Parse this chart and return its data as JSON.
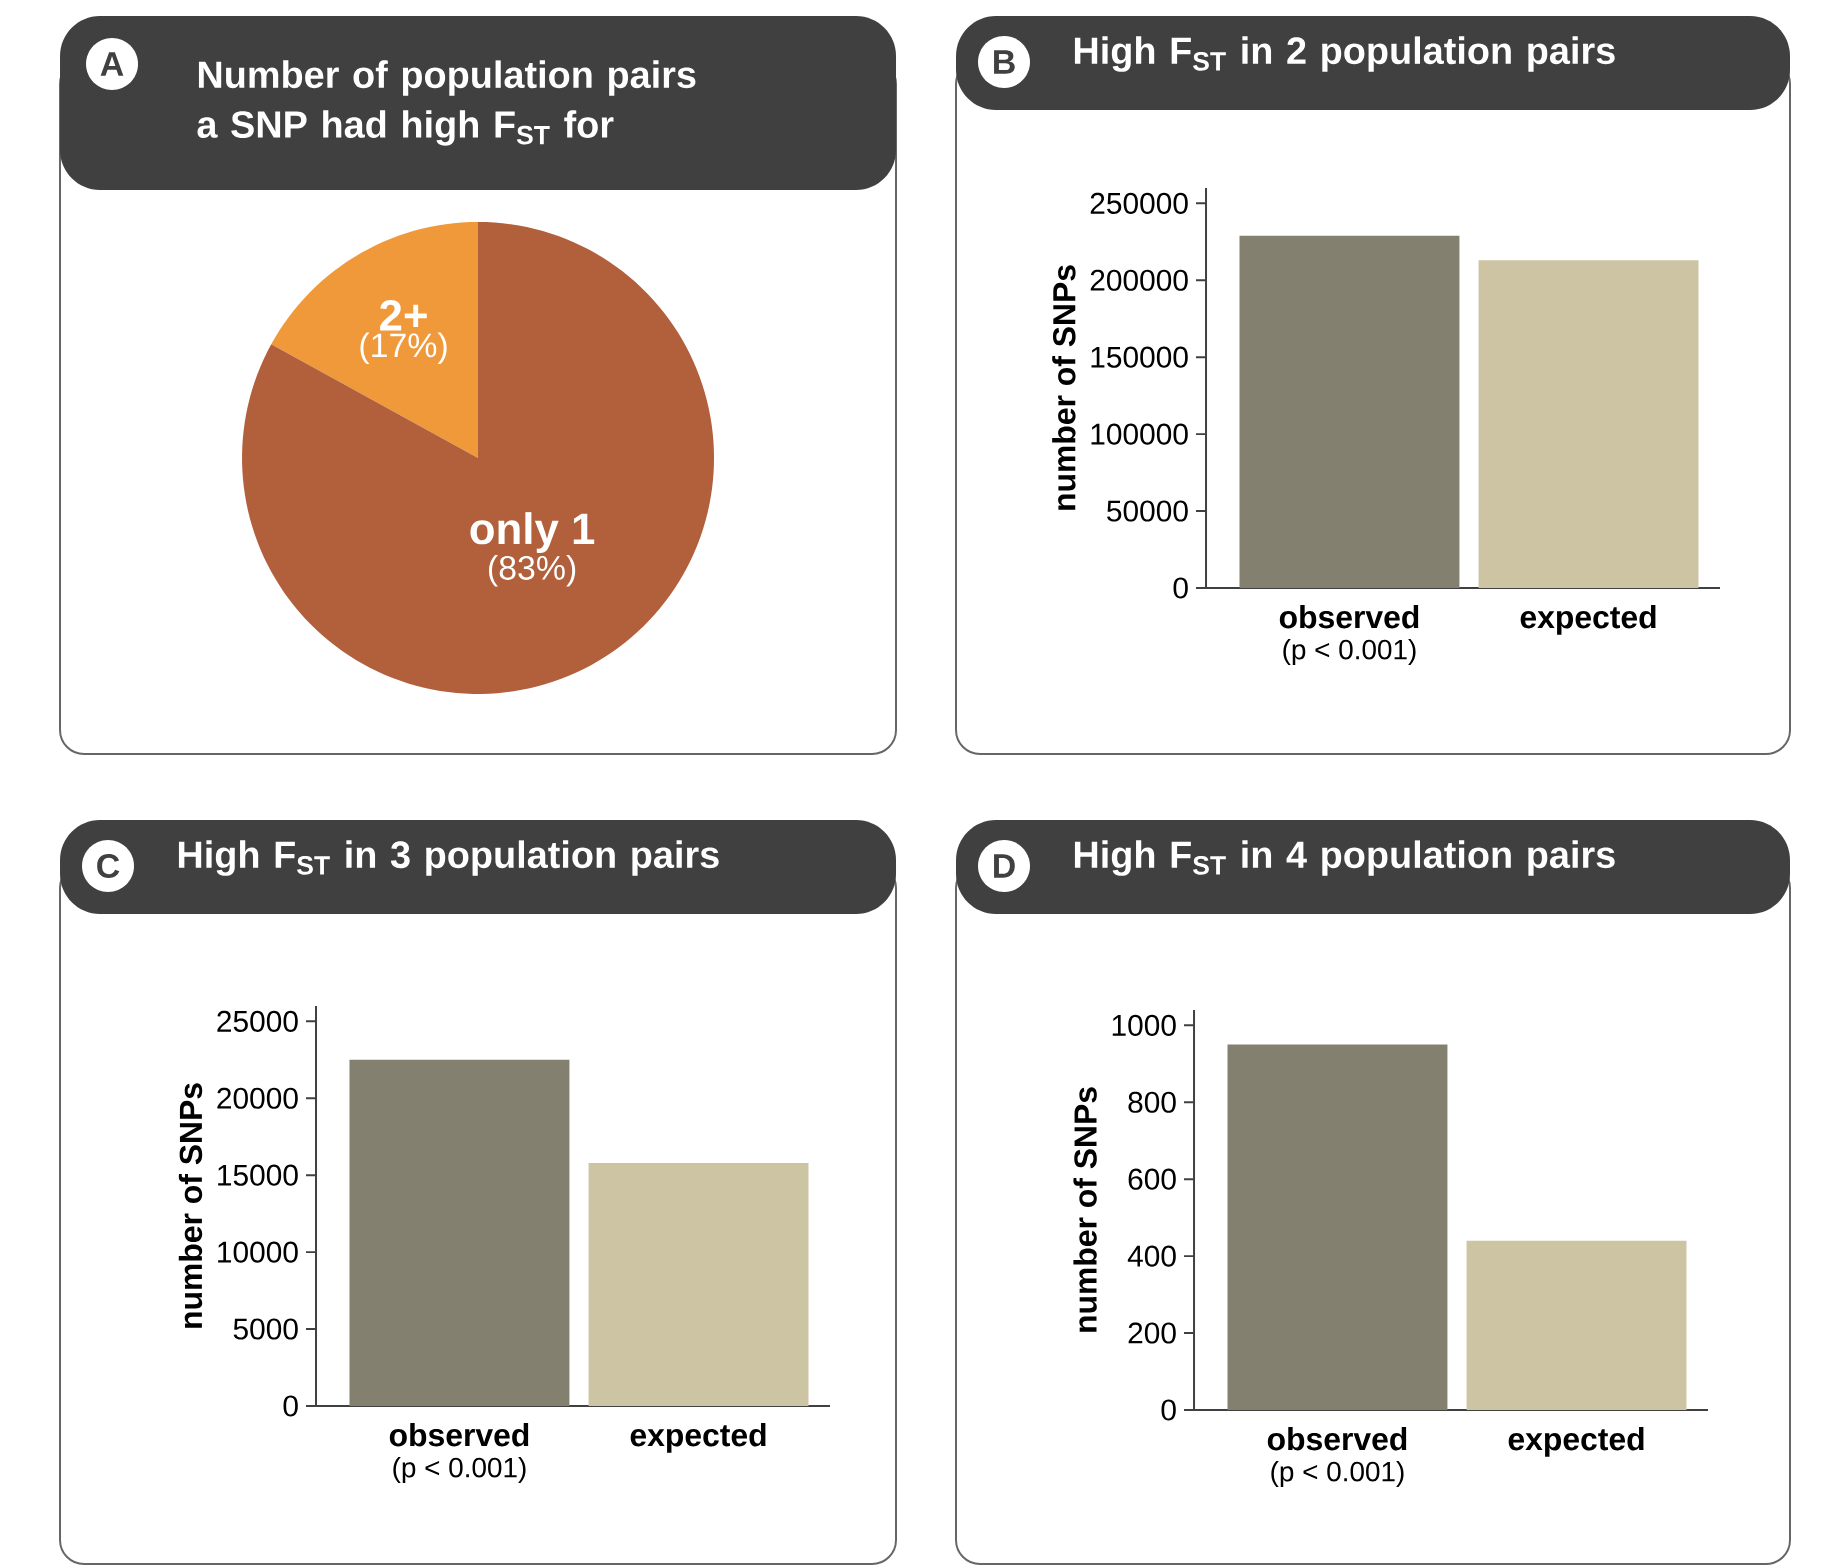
{
  "chart_data": [
    {
      "type": "pie",
      "title": "Number of population pairs a SNP had high F$_{ST}$ for",
      "categories": [
        "only 1",
        "2+"
      ],
      "values": [
        83,
        17
      ],
      "colors": [
        "#b2603c",
        "#f0993a"
      ],
      "value_labels": [
        "(83%)",
        "(17%)"
      ],
      "annotations": [
        "A"
      ]
    },
    {
      "type": "bar",
      "title": "High F$_{ST}$ in 2 population pairs",
      "categories": [
        "observed",
        "expected"
      ],
      "values": [
        229000,
        213000
      ],
      "colors": [
        "#838070",
        "#cdc4a3"
      ],
      "ylabel": "number of SNPs",
      "ylim": [
        0,
        260000
      ],
      "yticks": [
        0,
        50000,
        100000,
        150000,
        200000,
        250000
      ],
      "annotations": [
        "B",
        "(p < 0.001)"
      ]
    },
    {
      "type": "bar",
      "title": "High F$_{ST}$ in 3 population pairs",
      "categories": [
        "observed",
        "expected"
      ],
      "values": [
        22500,
        15800
      ],
      "colors": [
        "#838070",
        "#cdc4a3"
      ],
      "ylabel": "number of SNPs",
      "ylim": [
        0,
        26000
      ],
      "yticks": [
        0,
        5000,
        10000,
        15000,
        20000,
        25000
      ],
      "annotations": [
        "C",
        "(p < 0.001)"
      ]
    },
    {
      "type": "bar",
      "title": "High F$_{ST}$ in 4 population pairs",
      "categories": [
        "observed",
        "expected"
      ],
      "values": [
        950,
        440
      ],
      "colors": [
        "#838070",
        "#cdc4a3"
      ],
      "ylabel": "number of SNPs",
      "ylim": [
        0,
        1040
      ],
      "yticks": [
        0,
        200,
        400,
        600,
        800,
        1000
      ],
      "annotations": [
        "D",
        "(p < 0.001)"
      ]
    }
  ]
}
